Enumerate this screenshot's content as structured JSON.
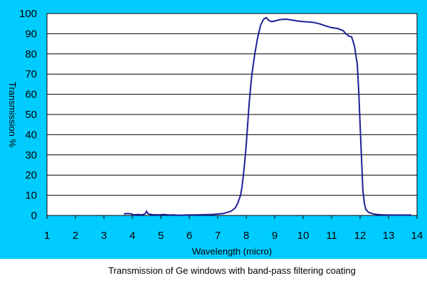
{
  "colors": {
    "panel_bg": "#00ccff",
    "plot_bg": "#ffffff",
    "line": "#1f1f99",
    "grid": "#000000",
    "text": "#000000"
  },
  "caption": "Transmission of Ge windows with band-pass filtering coating",
  "chart_data": {
    "type": "line",
    "xlabel": "Wavelength (micro)",
    "ylabel": "Transmission %",
    "xlim": [
      1,
      14
    ],
    "ylim": [
      0,
      100
    ],
    "xticks": [
      1,
      2,
      3,
      4,
      5,
      6,
      7,
      8,
      9,
      10,
      11,
      12,
      13,
      14
    ],
    "yticks": [
      0,
      10,
      20,
      30,
      40,
      50,
      60,
      70,
      80,
      90,
      100
    ],
    "grid": "horizontal",
    "legend": "none",
    "series": [
      {
        "x": [
          3.7,
          3.85,
          3.95,
          4.05,
          4.2,
          4.35,
          4.45,
          4.5,
          4.55,
          4.7,
          4.9,
          5.1,
          5.3,
          5.45,
          5.6,
          5.9,
          6.3,
          6.8,
          7.2,
          7.45,
          7.6,
          7.7,
          7.8,
          7.85,
          7.9,
          7.95,
          8.0,
          8.05,
          8.1,
          8.15,
          8.2,
          8.3,
          8.4,
          8.5,
          8.6,
          8.7,
          8.8,
          8.9,
          9.0,
          9.2,
          9.4,
          9.6,
          9.8,
          10.0,
          10.2,
          10.4,
          10.6,
          10.8,
          11.0,
          11.2,
          11.4,
          11.5,
          11.6,
          11.7,
          11.8,
          11.9,
          11.95,
          12.0,
          12.05,
          12.1,
          12.15,
          12.2,
          12.3,
          12.45,
          12.6,
          12.8,
          13.0,
          13.3,
          13.6,
          13.8
        ],
        "y": [
          0.8,
          1.0,
          0.8,
          0.3,
          0.5,
          0.3,
          0.8,
          2.2,
          0.8,
          0.4,
          0.3,
          0.5,
          0.2,
          0.3,
          0.1,
          0.2,
          0.3,
          0.5,
          1.0,
          2.0,
          3.5,
          6.0,
          10.0,
          14.0,
          20.0,
          27.0,
          35.0,
          45.0,
          55.0,
          63.0,
          70.0,
          80.0,
          88.0,
          94.0,
          97.0,
          98.0,
          96.5,
          96.0,
          96.3,
          97.0,
          97.2,
          96.8,
          96.3,
          96.0,
          95.8,
          95.5,
          94.8,
          93.8,
          93.0,
          92.6,
          91.6,
          90.0,
          88.8,
          88.5,
          84.0,
          75.0,
          62.0,
          45.0,
          28.0,
          12.0,
          6.0,
          3.0,
          1.5,
          0.8,
          0.5,
          0.3,
          0.2,
          0.2,
          0.2,
          0.2
        ]
      }
    ]
  }
}
